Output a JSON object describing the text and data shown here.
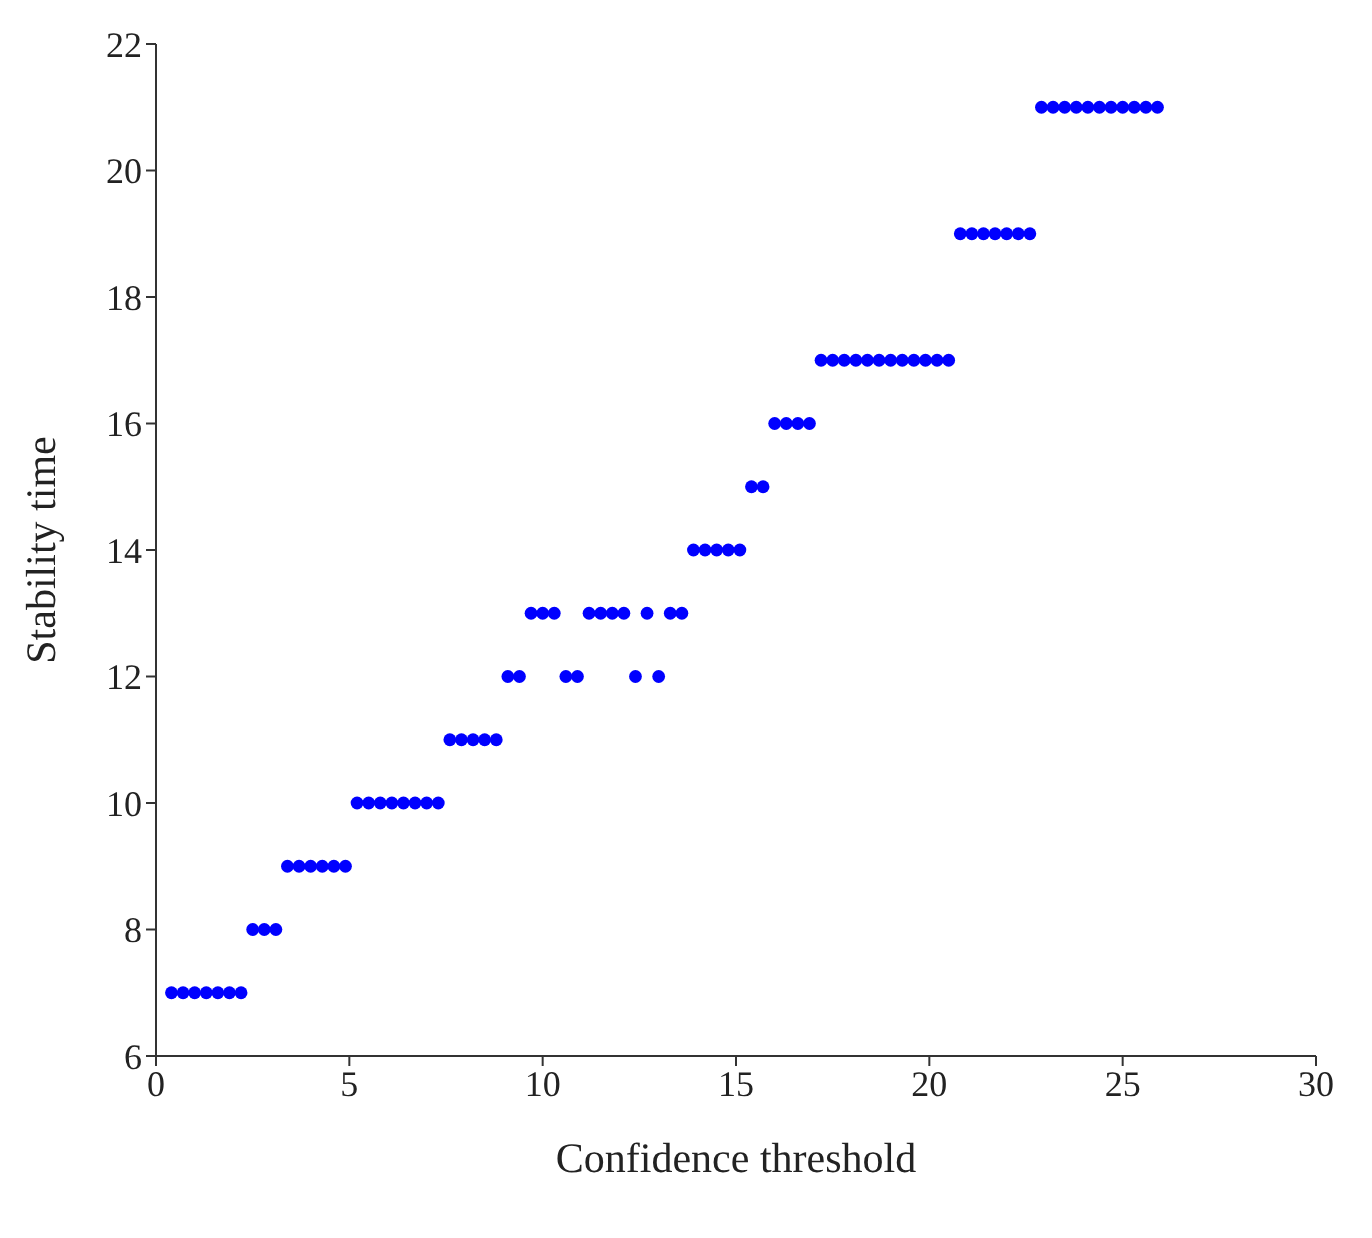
{
  "chart_data": {
    "type": "scatter",
    "xlabel": "Confidence threshold",
    "ylabel": "Stability time",
    "xlim": [
      0,
      30
    ],
    "xticks": [
      0,
      5,
      10,
      15,
      20,
      25,
      30
    ],
    "ylim": [
      6,
      22
    ],
    "yticks": [
      6,
      8,
      10,
      12,
      14,
      16,
      18,
      20,
      22
    ],
    "grid": false,
    "legend": false,
    "marker": "circle",
    "series": [
      {
        "color": "#0000ff",
        "x": [
          0.4,
          0.7,
          1,
          1.3,
          1.6,
          1.9,
          2.2,
          2.5,
          2.8,
          3.1,
          3.4,
          3.7,
          4,
          4.3,
          4.6,
          4.9,
          5.2,
          5.5,
          5.8,
          6.1,
          6.4,
          6.7,
          7,
          7.3,
          7.6,
          7.9,
          8.2,
          8.5,
          8.8,
          9.1,
          9.4,
          9.7,
          10,
          10.3,
          10.6,
          10.9,
          11.2,
          11.5,
          11.8,
          12.1,
          12.4,
          12.7,
          13,
          13.3,
          13.6,
          13.9,
          14.2,
          14.5,
          14.8,
          15.1,
          15.4,
          15.7,
          16,
          16.3,
          16.6,
          16.9,
          17.2,
          17.5,
          17.8,
          18.1,
          18.4,
          18.7,
          19,
          19.3,
          19.6,
          19.9,
          20.2,
          20.5,
          20.8,
          21.1,
          21.4,
          21.7,
          22,
          22.3,
          22.6,
          22.9,
          23.2,
          23.5,
          23.8,
          24.1,
          24.4,
          24.7,
          25,
          25.3,
          25.6,
          25.9
        ],
        "values": [
          7,
          7,
          7,
          7,
          7,
          7,
          7,
          8,
          8,
          8,
          9,
          9,
          9,
          9,
          9,
          9,
          10,
          10,
          10,
          10,
          10,
          10,
          10,
          10,
          11,
          11,
          11,
          11,
          11,
          12,
          12,
          13,
          13,
          13,
          12,
          12,
          13,
          13,
          13,
          13,
          12,
          13,
          12,
          13,
          13,
          14,
          14,
          14,
          14,
          14,
          15,
          15,
          16,
          16,
          16,
          16,
          17,
          17,
          17,
          17,
          17,
          17,
          17,
          17,
          17,
          17,
          17,
          17,
          19,
          19,
          19,
          19,
          19,
          19,
          19,
          21,
          21,
          21,
          21,
          21,
          21,
          21,
          21,
          21,
          21,
          21
        ]
      }
    ]
  }
}
